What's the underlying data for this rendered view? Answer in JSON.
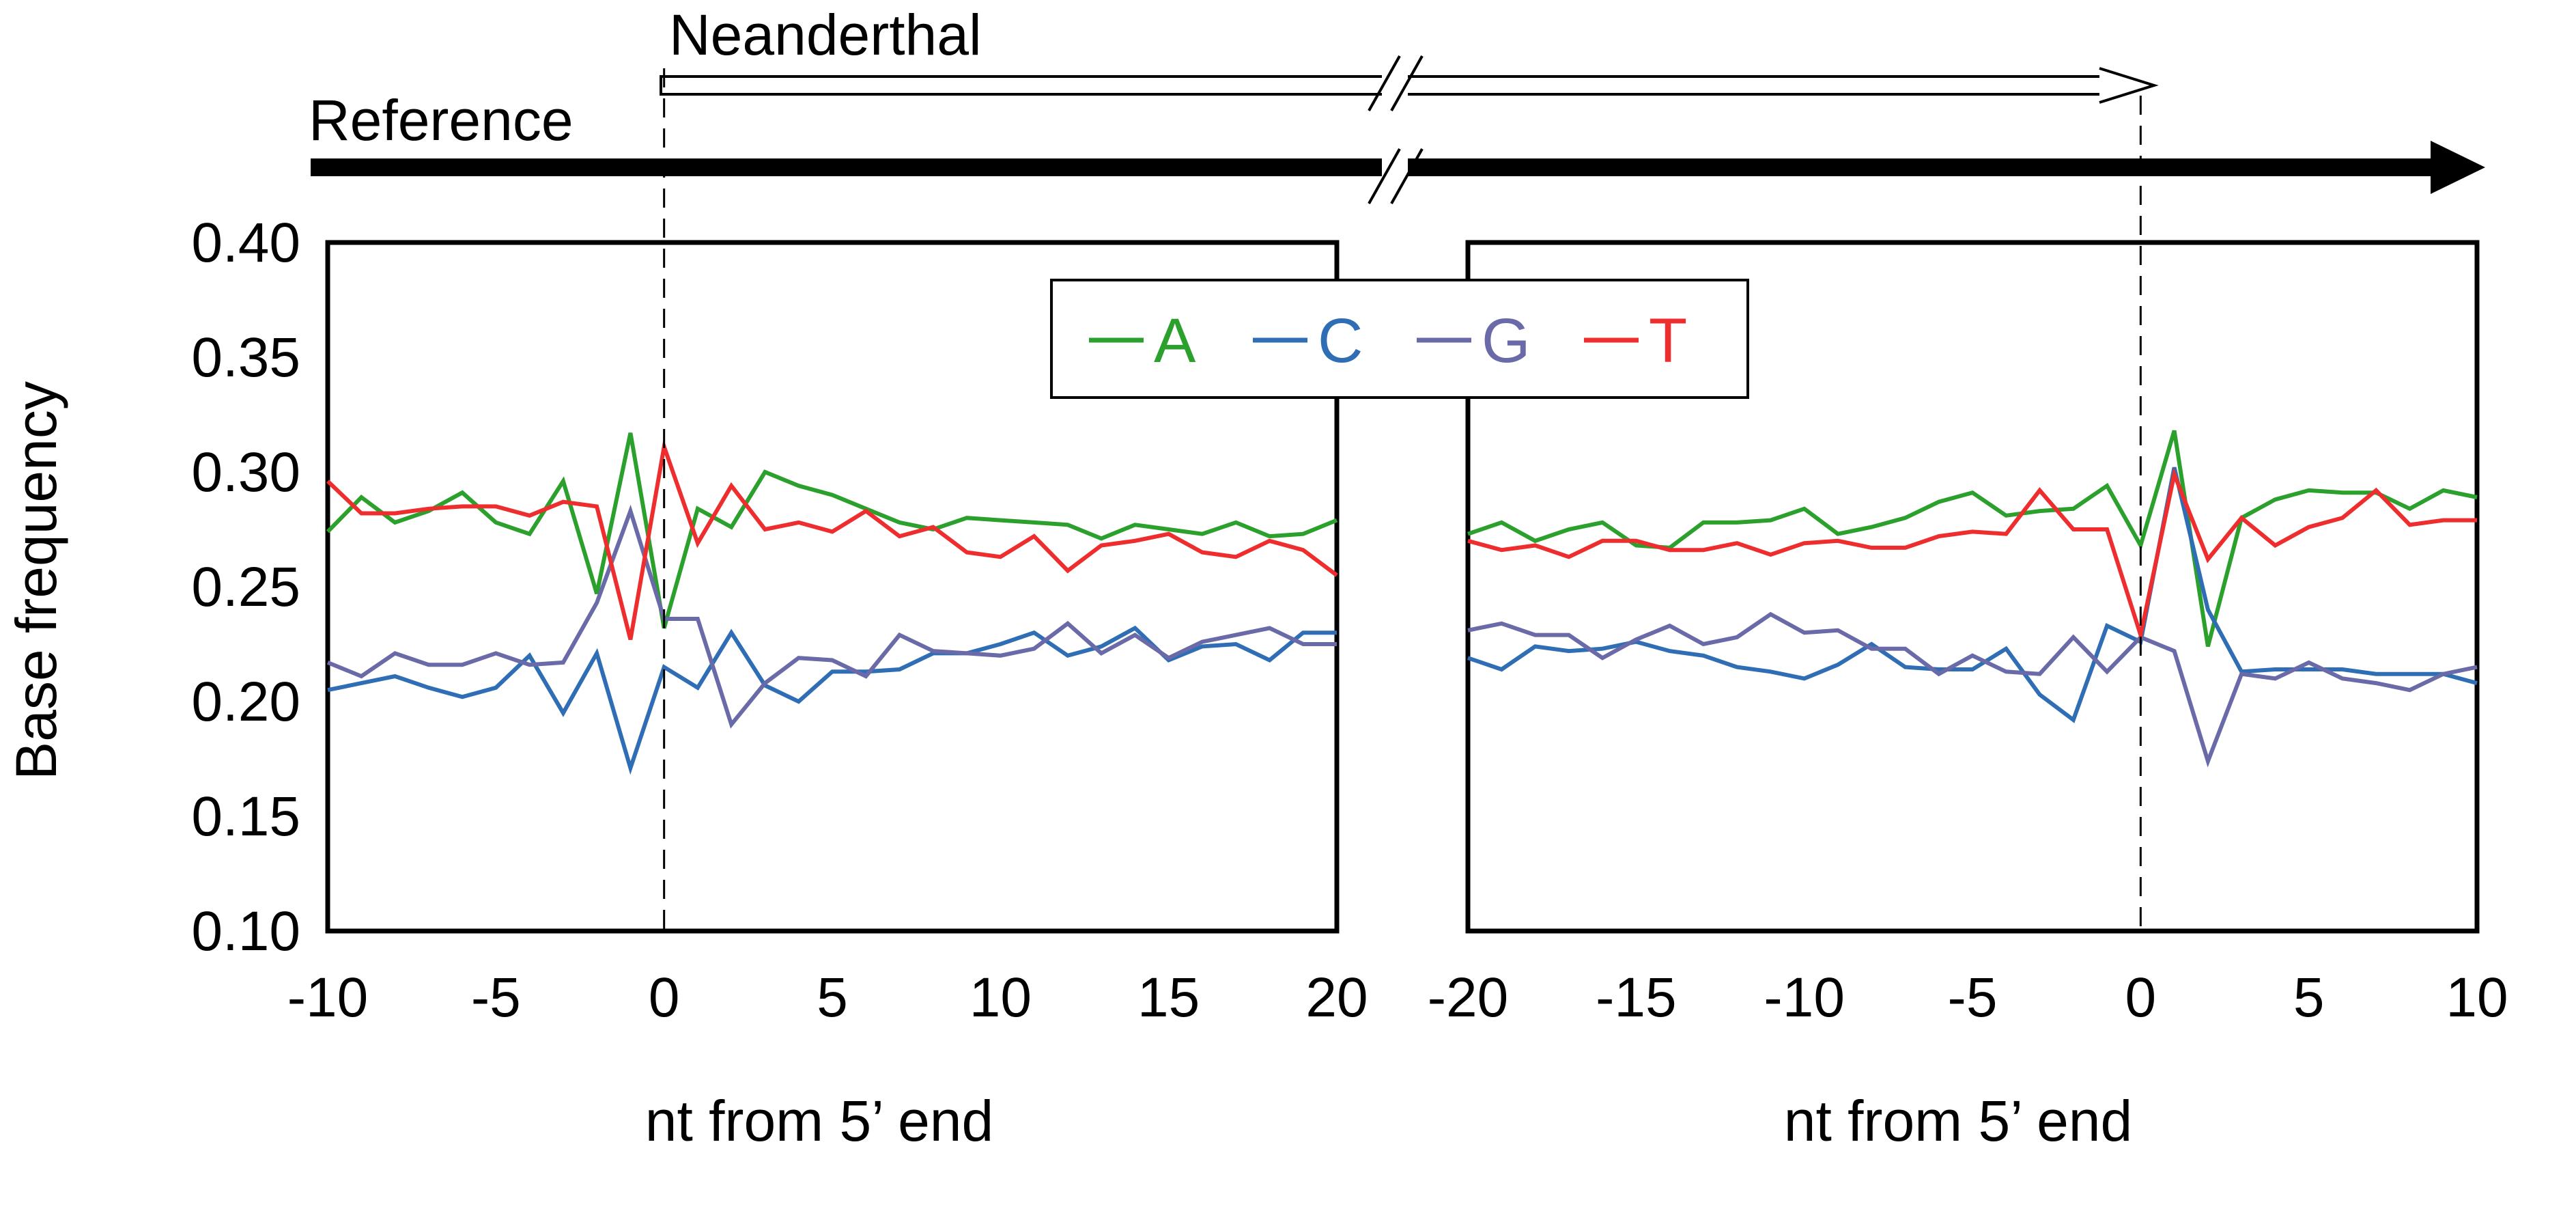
{
  "chart_data": [
    {
      "type": "line",
      "panel": "left",
      "xlabel": "nt from 5’ end",
      "ylabel": "Base frequency",
      "xlim": [
        -10,
        20
      ],
      "ylim": [
        0.1,
        0.4
      ],
      "x_ticks": [
        "-10",
        "-5",
        "0",
        "5",
        "10",
        "15",
        "20"
      ],
      "y_ticks": [
        "0.40",
        "0.35",
        "0.30",
        "0.25",
        "0.20",
        "0.15",
        "0.10"
      ],
      "x": [
        -10,
        -9,
        -8,
        -7,
        -6,
        -5,
        -4,
        -3,
        -2,
        -1,
        0,
        1,
        2,
        3,
        4,
        5,
        6,
        7,
        8,
        9,
        10,
        11,
        12,
        13,
        14,
        15,
        16,
        17,
        18,
        19,
        20
      ],
      "series": [
        {
          "name": "A",
          "color": "#2ca02c",
          "values": [
            0.274,
            0.289,
            0.278,
            0.283,
            0.291,
            0.278,
            0.273,
            0.296,
            0.247,
            0.317,
            0.232,
            0.284,
            0.276,
            0.3,
            0.294,
            0.29,
            0.284,
            0.278,
            0.275,
            0.28,
            0.279,
            0.278,
            0.277,
            0.271,
            0.277,
            0.275,
            0.273,
            0.278,
            0.272,
            0.273,
            0.279
          ]
        },
        {
          "name": "C",
          "color": "#2f6eb5",
          "values": [
            0.205,
            0.208,
            0.211,
            0.206,
            0.202,
            0.206,
            0.22,
            0.195,
            0.221,
            0.171,
            0.215,
            0.206,
            0.23,
            0.207,
            0.2,
            0.213,
            0.213,
            0.214,
            0.221,
            0.221,
            0.225,
            0.23,
            0.22,
            0.224,
            0.232,
            0.218,
            0.224,
            0.225,
            0.218,
            0.23,
            0.23
          ]
        },
        {
          "name": "G",
          "color": "#6b6aa8",
          "values": [
            0.217,
            0.211,
            0.221,
            0.216,
            0.216,
            0.221,
            0.216,
            0.217,
            0.243,
            0.283,
            0.236,
            0.236,
            0.19,
            0.208,
            0.219,
            0.218,
            0.211,
            0.229,
            0.222,
            0.221,
            0.22,
            0.223,
            0.234,
            0.221,
            0.229,
            0.219,
            0.226,
            0.229,
            0.232,
            0.225,
            0.225
          ]
        },
        {
          "name": "T",
          "color": "#ee2e2e",
          "values": [
            0.296,
            0.282,
            0.282,
            0.284,
            0.285,
            0.285,
            0.281,
            0.287,
            0.285,
            0.227,
            0.311,
            0.269,
            0.294,
            0.275,
            0.278,
            0.274,
            0.283,
            0.272,
            0.276,
            0.265,
            0.263,
            0.272,
            0.257,
            0.268,
            0.27,
            0.273,
            0.265,
            0.263,
            0.27,
            0.266,
            0.255
          ]
        }
      ]
    },
    {
      "type": "line",
      "panel": "right",
      "xlabel": "nt from 5’ end",
      "ylabel": "",
      "xlim": [
        -20,
        10
      ],
      "ylim": [
        0.1,
        0.4
      ],
      "x_ticks": [
        "-20",
        "-15",
        "-10",
        "-5",
        "0",
        "5",
        "10"
      ],
      "x": [
        -20,
        -19,
        -18,
        -17,
        -16,
        -15,
        -14,
        -13,
        -12,
        -11,
        -10,
        -9,
        -8,
        -7,
        -6,
        -5,
        -4,
        -3,
        -2,
        -1,
        0,
        1,
        2,
        3,
        4,
        5,
        6,
        7,
        8,
        9,
        10
      ],
      "series": [
        {
          "name": "A",
          "color": "#2ca02c",
          "values": [
            0.273,
            0.278,
            0.27,
            0.275,
            0.278,
            0.268,
            0.267,
            0.278,
            0.278,
            0.279,
            0.284,
            0.273,
            0.276,
            0.28,
            0.287,
            0.291,
            0.281,
            0.283,
            0.284,
            0.294,
            0.268,
            0.318,
            0.224,
            0.28,
            0.288,
            0.292,
            0.291,
            0.291,
            0.284,
            0.292,
            0.289
          ]
        },
        {
          "name": "C",
          "color": "#2f6eb5",
          "values": [
            0.219,
            0.214,
            0.224,
            0.222,
            0.223,
            0.226,
            0.222,
            0.22,
            0.215,
            0.213,
            0.21,
            0.216,
            0.225,
            0.215,
            0.214,
            0.214,
            0.223,
            0.203,
            0.192,
            0.233,
            0.226,
            0.302,
            0.24,
            0.213,
            0.214,
            0.214,
            0.214,
            0.212,
            0.212,
            0.212,
            0.208
          ]
        },
        {
          "name": "G",
          "color": "#6b6aa8",
          "values": [
            0.231,
            0.234,
            0.229,
            0.229,
            0.219,
            0.227,
            0.233,
            0.225,
            0.228,
            0.238,
            0.23,
            0.231,
            0.223,
            0.223,
            0.212,
            0.22,
            0.213,
            0.212,
            0.228,
            0.213,
            0.228,
            0.222,
            0.174,
            0.212,
            0.21,
            0.217,
            0.21,
            0.208,
            0.205,
            0.212,
            0.215
          ]
        },
        {
          "name": "T",
          "color": "#ee2e2e",
          "values": [
            0.27,
            0.266,
            0.268,
            0.263,
            0.27,
            0.27,
            0.266,
            0.266,
            0.269,
            0.264,
            0.269,
            0.27,
            0.267,
            0.267,
            0.272,
            0.274,
            0.273,
            0.292,
            0.275,
            0.275,
            0.229,
            0.299,
            0.262,
            0.28,
            0.268,
            0.276,
            0.28,
            0.292,
            0.277,
            0.279,
            0.279
          ]
        }
      ]
    }
  ],
  "legend": {
    "items": [
      {
        "label": "A",
        "color": "#2ca02c"
      },
      {
        "label": "C",
        "color": "#2f6eb5"
      },
      {
        "label": "G",
        "color": "#6b6aa8"
      },
      {
        "label": "T",
        "color": "#ee2e2e"
      }
    ]
  },
  "arrows": {
    "neanderthal_label": "Neanderthal",
    "reference_label": "Reference"
  }
}
